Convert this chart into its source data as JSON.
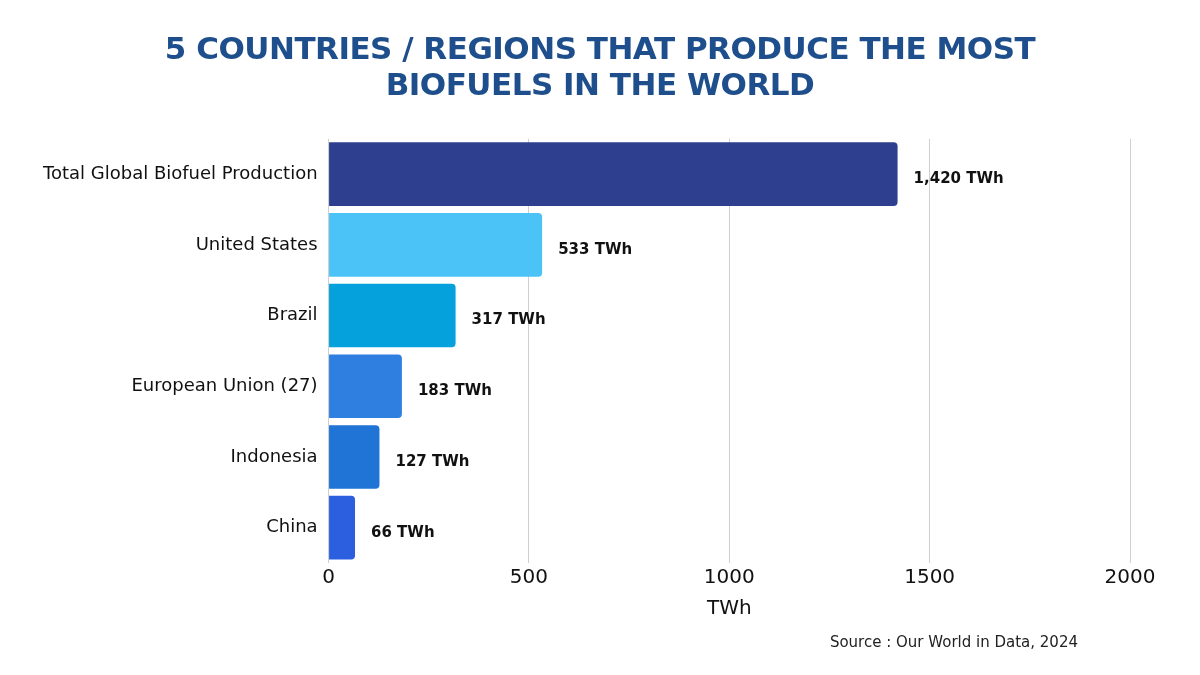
{
  "chart_data": {
    "type": "bar",
    "orientation": "horizontal",
    "title": "5 COUNTRIES / REGIONS THAT PRODUCE THE MOST BIOFUELS IN THE WORLD",
    "xlabel": "TWh",
    "categories": [
      "Total Global Biofuel Production",
      "United States",
      "Brazil",
      "European Union (27)",
      "Indonesia",
      "China"
    ],
    "values": [
      1420,
      533,
      317,
      183,
      127,
      66
    ],
    "value_labels": [
      "1,420 TWh",
      "533 TWh",
      "317 TWh",
      "183 TWh",
      "127 TWh",
      "66 TWh"
    ],
    "colors": [
      "#2f3f8f",
      "#4bc3f7",
      "#04a1dd",
      "#2f7fe0",
      "#1f74d6",
      "#2c5fe0"
    ],
    "xlim": [
      0,
      2000
    ],
    "xticks": [
      0,
      500,
      1000,
      1500,
      2000
    ],
    "grid": "x",
    "legend": false,
    "annotations": [
      "Source : Our World in Data, 2024"
    ]
  }
}
